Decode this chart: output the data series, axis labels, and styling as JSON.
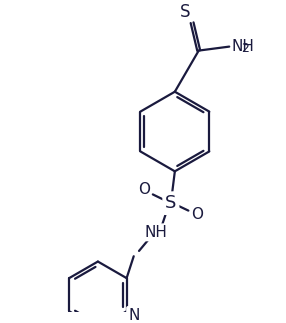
{
  "bg_color": "#ffffff",
  "line_color": "#1a1a3e",
  "line_width": 1.6,
  "figsize": [
    2.86,
    3.23
  ],
  "dpi": 100,
  "labels": {
    "S_thio": "S",
    "NH2": "NH2",
    "S_sulfo": "S",
    "O_left": "O",
    "O_right": "O",
    "NH": "NH",
    "N_pyridine": "N"
  },
  "font_size": 11
}
